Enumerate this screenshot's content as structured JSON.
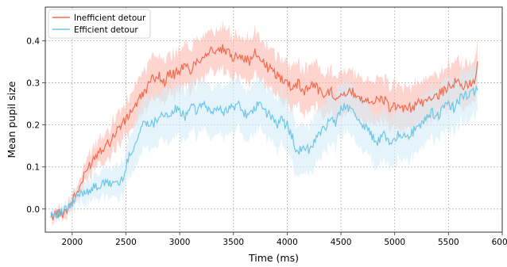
{
  "chart_data": {
    "type": "line",
    "title": "",
    "xlabel": "Time (ms)",
    "ylabel": "Mean pupil size",
    "xlim": [
      1750,
      6000
    ],
    "ylim": [
      -0.055,
      0.48
    ],
    "xticks": [
      2000,
      2500,
      3000,
      3500,
      4000,
      4500,
      5000,
      5500,
      6000
    ],
    "yticks": [
      0.0,
      0.1,
      0.2,
      0.3,
      0.4
    ],
    "xtick_labels": [
      "2000",
      "2500",
      "3000",
      "3500",
      "4000",
      "4500",
      "5000",
      "5500",
      "6000"
    ],
    "ytick_labels": [
      "0.0",
      "0.1",
      "0.2",
      "0.3",
      "0.4"
    ],
    "grid": true,
    "legend_position": "top-left",
    "series": [
      {
        "name": "Inefficient detour",
        "color": "#f26c4f",
        "band_color": "#fbb8ad",
        "x": [
          1800,
          1850,
          1900,
          1950,
          2000,
          2050,
          2100,
          2150,
          2200,
          2250,
          2300,
          2350,
          2400,
          2450,
          2500,
          2550,
          2600,
          2650,
          2700,
          2750,
          2800,
          2850,
          2900,
          2950,
          3000,
          3050,
          3100,
          3150,
          3200,
          3250,
          3300,
          3350,
          3400,
          3450,
          3500,
          3550,
          3600,
          3650,
          3700,
          3750,
          3800,
          3850,
          3900,
          3950,
          4000,
          4050,
          4100,
          4150,
          4200,
          4250,
          4300,
          4350,
          4400,
          4450,
          4500,
          4550,
          4600,
          4650,
          4700,
          4750,
          4800,
          4850,
          4900,
          4950,
          5000,
          5050,
          5100,
          5150,
          5200,
          5250,
          5300,
          5350,
          5400,
          5450,
          5500,
          5550,
          5600,
          5650,
          5700,
          5750,
          5770
        ],
        "values": [
          -0.02,
          -0.01,
          -0.012,
          0.0,
          0.02,
          0.04,
          0.07,
          0.1,
          0.12,
          0.14,
          0.15,
          0.16,
          0.18,
          0.2,
          0.21,
          0.235,
          0.25,
          0.27,
          0.29,
          0.31,
          0.32,
          0.3,
          0.32,
          0.32,
          0.33,
          0.34,
          0.33,
          0.35,
          0.36,
          0.37,
          0.38,
          0.37,
          0.38,
          0.37,
          0.36,
          0.37,
          0.36,
          0.35,
          0.37,
          0.36,
          0.34,
          0.33,
          0.32,
          0.31,
          0.3,
          0.29,
          0.3,
          0.28,
          0.29,
          0.3,
          0.28,
          0.27,
          0.28,
          0.27,
          0.275,
          0.27,
          0.28,
          0.27,
          0.26,
          0.265,
          0.25,
          0.26,
          0.26,
          0.24,
          0.25,
          0.23,
          0.24,
          0.24,
          0.25,
          0.25,
          0.26,
          0.27,
          0.27,
          0.28,
          0.29,
          0.3,
          0.3,
          0.29,
          0.3,
          0.31,
          0.35
        ],
        "band_width": [
          0.01,
          0.01,
          0.012,
          0.015,
          0.018,
          0.02,
          0.022,
          0.025,
          0.028,
          0.03,
          0.032,
          0.035,
          0.038,
          0.04,
          0.042,
          0.045,
          0.048,
          0.05,
          0.05,
          0.05,
          0.05,
          0.05,
          0.05,
          0.05,
          0.05,
          0.05,
          0.05,
          0.05,
          0.05,
          0.05,
          0.05,
          0.05,
          0.05,
          0.05,
          0.05,
          0.05,
          0.05,
          0.05,
          0.05,
          0.05,
          0.05,
          0.05,
          0.05,
          0.05,
          0.05,
          0.05,
          0.05,
          0.05,
          0.05,
          0.05,
          0.05,
          0.05,
          0.05,
          0.05,
          0.05,
          0.05,
          0.05,
          0.05,
          0.05,
          0.05,
          0.05,
          0.05,
          0.05,
          0.05,
          0.05,
          0.05,
          0.05,
          0.05,
          0.05,
          0.05,
          0.05,
          0.05,
          0.05,
          0.05,
          0.05,
          0.05,
          0.05,
          0.05,
          0.05,
          0.05,
          0.05
        ]
      },
      {
        "name": "Efficient detour",
        "color": "#6ec6e6",
        "band_color": "#d3ecf8",
        "x": [
          1800,
          1850,
          1900,
          1950,
          2000,
          2050,
          2100,
          2150,
          2200,
          2250,
          2300,
          2350,
          2400,
          2450,
          2500,
          2550,
          2600,
          2650,
          2700,
          2750,
          2800,
          2850,
          2900,
          2950,
          3000,
          3050,
          3100,
          3150,
          3200,
          3250,
          3300,
          3350,
          3400,
          3450,
          3500,
          3550,
          3600,
          3650,
          3700,
          3750,
          3800,
          3850,
          3900,
          3950,
          4000,
          4050,
          4100,
          4150,
          4200,
          4250,
          4300,
          4350,
          4400,
          4450,
          4500,
          4550,
          4600,
          4650,
          4700,
          4750,
          4800,
          4850,
          4900,
          4950,
          5000,
          5050,
          5100,
          5150,
          5200,
          5250,
          5300,
          5350,
          5400,
          5450,
          5500,
          5550,
          5600,
          5650,
          5700,
          5750,
          5770
        ],
        "values": [
          -0.01,
          -0.01,
          -0.01,
          0.0,
          0.01,
          0.03,
          0.04,
          0.045,
          0.05,
          0.055,
          0.06,
          0.06,
          0.065,
          0.06,
          0.1,
          0.14,
          0.16,
          0.2,
          0.21,
          0.2,
          0.22,
          0.23,
          0.21,
          0.24,
          0.23,
          0.22,
          0.25,
          0.23,
          0.25,
          0.24,
          0.23,
          0.24,
          0.23,
          0.24,
          0.24,
          0.25,
          0.23,
          0.22,
          0.24,
          0.25,
          0.23,
          0.22,
          0.2,
          0.21,
          0.2,
          0.17,
          0.13,
          0.15,
          0.14,
          0.16,
          0.18,
          0.19,
          0.22,
          0.2,
          0.24,
          0.25,
          0.23,
          0.22,
          0.2,
          0.19,
          0.17,
          0.16,
          0.18,
          0.16,
          0.17,
          0.18,
          0.17,
          0.18,
          0.19,
          0.2,
          0.22,
          0.23,
          0.22,
          0.24,
          0.25,
          0.24,
          0.26,
          0.27,
          0.27,
          0.28,
          0.29
        ],
        "band_width": [
          0.01,
          0.01,
          0.012,
          0.015,
          0.018,
          0.02,
          0.022,
          0.025,
          0.028,
          0.03,
          0.032,
          0.035,
          0.038,
          0.04,
          0.045,
          0.05,
          0.055,
          0.06,
          0.06,
          0.06,
          0.06,
          0.06,
          0.06,
          0.06,
          0.06,
          0.06,
          0.06,
          0.06,
          0.06,
          0.06,
          0.06,
          0.06,
          0.06,
          0.06,
          0.06,
          0.06,
          0.06,
          0.06,
          0.06,
          0.06,
          0.06,
          0.06,
          0.06,
          0.06,
          0.06,
          0.06,
          0.06,
          0.06,
          0.06,
          0.06,
          0.06,
          0.06,
          0.06,
          0.06,
          0.06,
          0.06,
          0.06,
          0.06,
          0.06,
          0.06,
          0.06,
          0.06,
          0.06,
          0.06,
          0.06,
          0.06,
          0.06,
          0.06,
          0.06,
          0.06,
          0.06,
          0.06,
          0.06,
          0.06,
          0.06,
          0.06,
          0.06,
          0.06,
          0.06,
          0.06,
          0.06
        ]
      }
    ]
  }
}
